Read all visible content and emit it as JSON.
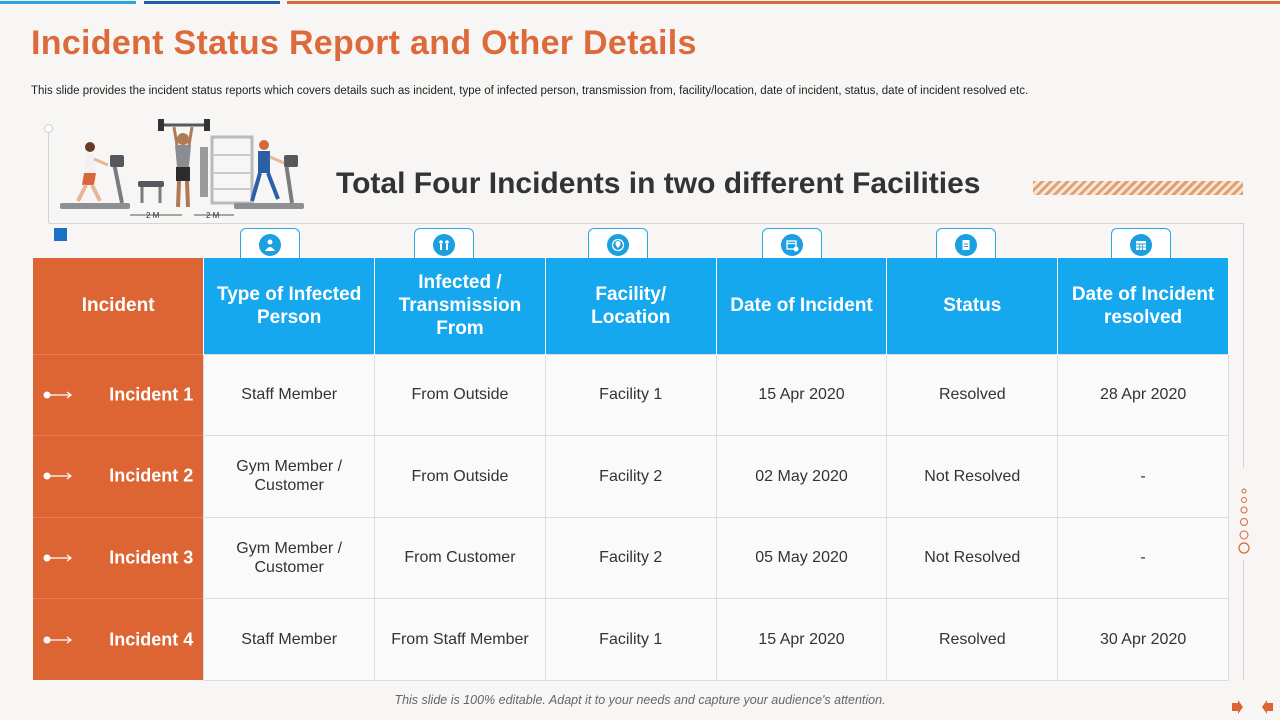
{
  "slide": {
    "title": "Incident Status Report and Other Details",
    "subtitle": "This slide provides the incident status reports which covers details such as incident, type of infected person, transmission from, facility/location, date of incident, status, date of incident resolved etc.",
    "headline": "Total Four Incidents in two different Facilities",
    "footer": "This slide is 100% editable. Adapt it to your needs and capture your audience's attention.",
    "illustration_labels": {
      "gap1": "2 M",
      "gap2": "2 M"
    }
  },
  "colors": {
    "orange": "#dd6433",
    "blue": "#16a8ee",
    "title_orange": "#dd6a3b"
  },
  "table": {
    "headers": [
      "Incident",
      "Type of Infected Person",
      "Infected / Transmission From",
      "Facility/ Location",
      "Date of Incident",
      "Status",
      "Date of Incident resolved"
    ],
    "header_icons": [
      "medical-staff-icon",
      "people-transfer-icon",
      "location-globe-icon",
      "calendar-add-icon",
      "clipboard-icon",
      "calendar-grid-icon"
    ],
    "rows": [
      [
        "Incident 1",
        "Staff Member",
        "From Outside",
        "Facility 1",
        "15 Apr 2020",
        "Resolved",
        "28 Apr 2020"
      ],
      [
        "Incident 2",
        "Gym Member / Customer",
        "From Outside",
        "Facility 2",
        "02 May 2020",
        "Not Resolved",
        "-"
      ],
      [
        "Incident 3",
        "Gym Member / Customer",
        "From Customer",
        "Facility 2",
        "05 May 2020",
        "Not Resolved",
        "-"
      ],
      [
        "Incident 4",
        "Staff Member",
        "From Staff Member",
        "Facility 1",
        "15 Apr 2020",
        "Resolved",
        "30 Apr 2020"
      ]
    ]
  }
}
